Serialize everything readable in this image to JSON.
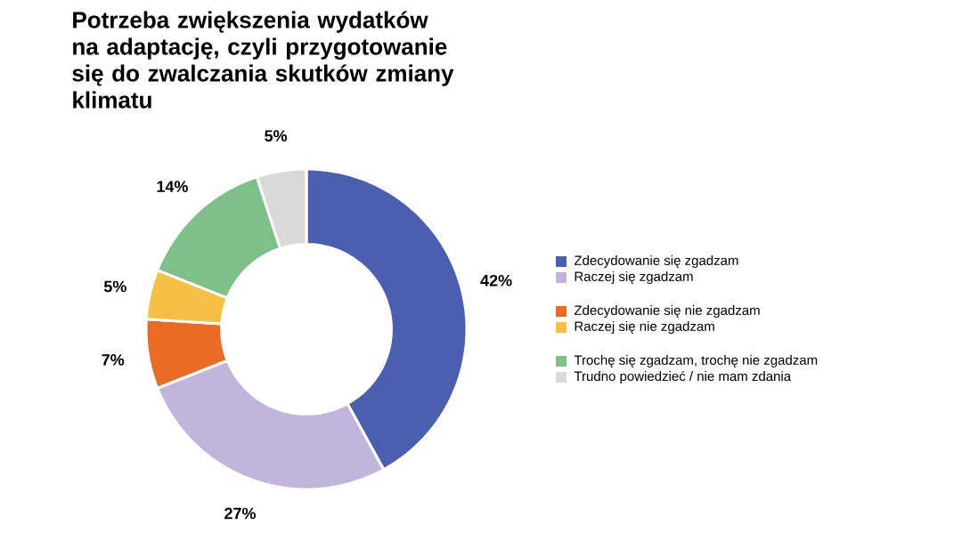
{
  "chart_data": {
    "type": "donut",
    "title": "Potrzeba zwiększenia wydatków na adaptację, czyli przygotowanie się do zwalczania skutków zmiany klimatu",
    "categories": [
      "Zdecydowanie się zgadzam",
      "Raczej się zgadzam",
      "Zdecydowanie się nie zgadzam",
      "Raczej się nie zgadzam",
      "Trochę się zgadzam, trochę nie zgadzam",
      "Trudno powiedzieć / nie mam zdania"
    ],
    "values": [
      42,
      27,
      7,
      5,
      14,
      5
    ],
    "colors": [
      "#4a5fb0",
      "#c2b5dc",
      "#ea6b24",
      "#f8bf45",
      "#7fbf8a",
      "#d9d9d9"
    ],
    "value_labels": [
      "42%",
      "27%",
      "7%",
      "5%",
      "14%",
      "5%"
    ],
    "legend": "right"
  }
}
